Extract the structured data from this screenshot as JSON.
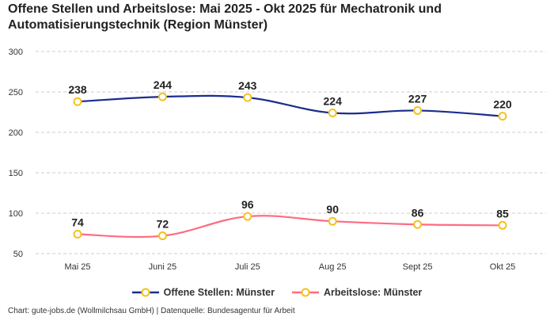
{
  "chart_data": {
    "type": "line",
    "title": "Offene Stellen und Arbeitslose: Mai 2025 - Okt 2025 für Mechatronik und Automatisierungstechnik (Region Münster)",
    "categories": [
      "Mai 25",
      "Juni 25",
      "Juli 25",
      "Aug 25",
      "Sept 25",
      "Okt 25"
    ],
    "series": [
      {
        "name": "Offene Stellen: Münster",
        "values": [
          238,
          244,
          243,
          224,
          227,
          220
        ],
        "color": "#1b2e8c"
      },
      {
        "name": "Arbeitslose: Münster",
        "values": [
          74,
          72,
          96,
          90,
          86,
          85
        ],
        "color": "#ff6b81"
      }
    ],
    "marker_color": "#f5c11e",
    "ylim": [
      50,
      300
    ],
    "yticks": [
      50,
      100,
      150,
      200,
      250,
      300
    ],
    "grid": true,
    "legend": "bottom",
    "xlabel": "",
    "ylabel": ""
  },
  "footer": "Chart: gute-jobs.de (Wollmilchsau GmbH) | Datenquelle: Bundesagentur für Arbeit"
}
